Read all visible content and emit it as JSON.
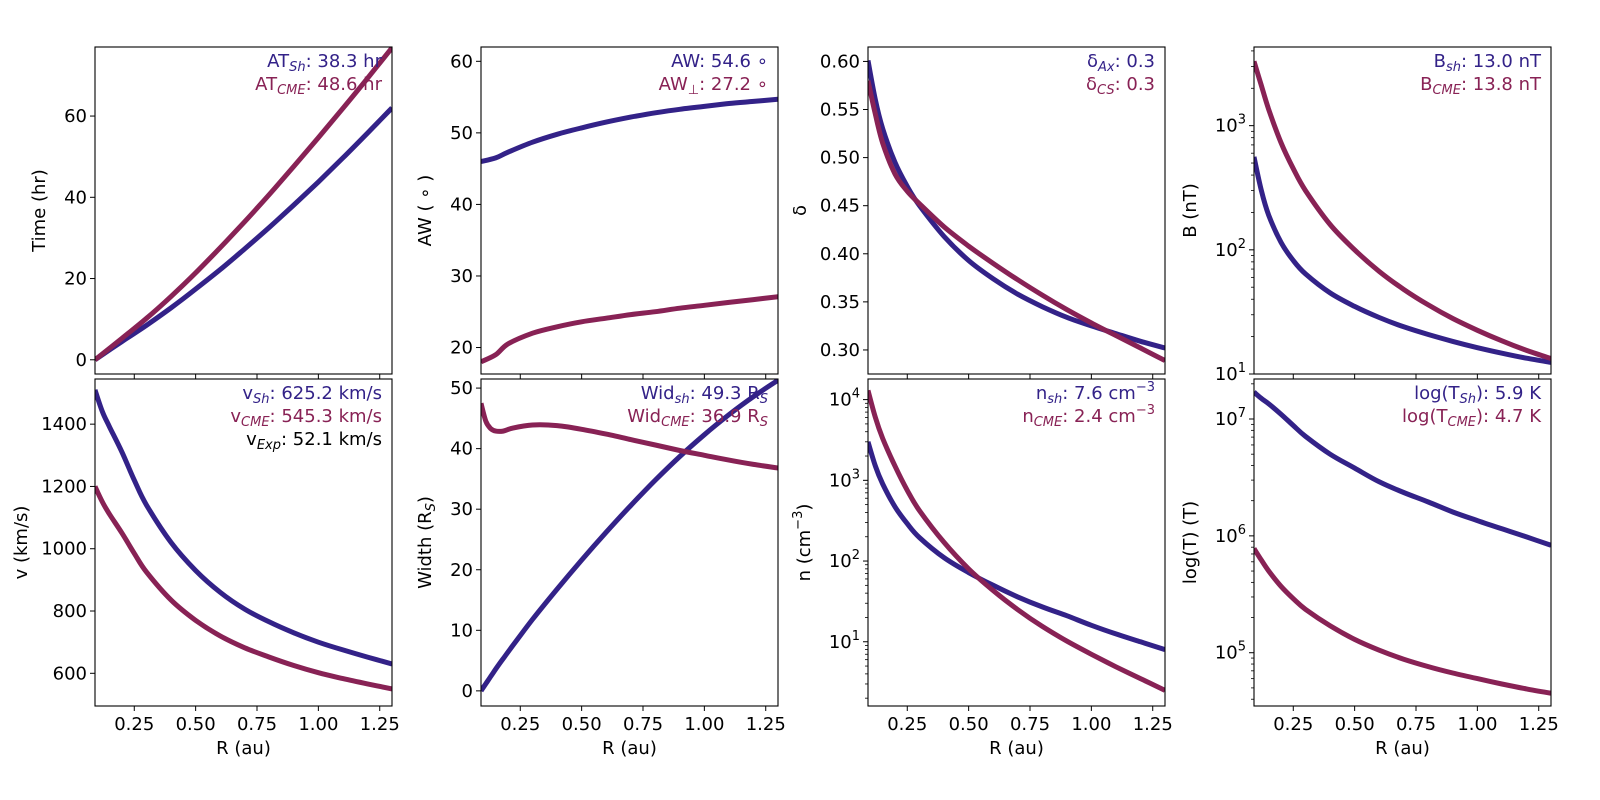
{
  "colors": {
    "shock": "#332288",
    "cme": "#882255",
    "text": "#000000",
    "axis": "#000000"
  },
  "chart_data": [
    {
      "id": "time",
      "type": "line",
      "xlabel": "R (au)",
      "ylabel": "Time (hr)",
      "yscale": "linear",
      "xlim": [
        0.09,
        1.3
      ],
      "ylim": [
        -3.5,
        77
      ],
      "xticks": [
        0.25,
        0.5,
        0.75,
        1.0,
        1.25
      ],
      "xtick_labels": [
        "0.25",
        "0.50",
        "0.75",
        "1.00",
        "1.25"
      ],
      "show_xtick_labels": false,
      "yticks": [
        0,
        20,
        40,
        60
      ],
      "ytick_labels": [
        "0",
        "20",
        "40",
        "60"
      ],
      "x": [
        0.09,
        0.2,
        0.3,
        0.4,
        0.5,
        0.6,
        0.7,
        0.8,
        0.9,
        1.0,
        1.1,
        1.2,
        1.3
      ],
      "series": [
        {
          "name": "shock",
          "values": [
            0,
            4.5,
            8.5,
            12.8,
            17.4,
            22.2,
            27.3,
            32.6,
            38.1,
            43.8,
            49.7,
            55.8,
            62.0
          ]
        },
        {
          "name": "cme",
          "values": [
            0,
            5.3,
            10.2,
            15.6,
            21.4,
            27.6,
            34.0,
            40.7,
            47.6,
            54.7,
            61.9,
            69.3,
            76.8
          ]
        }
      ],
      "annotations": [
        {
          "series": "shock",
          "main": "AT",
          "sub": "Sh",
          "rest": ": 38.3 hr"
        },
        {
          "series": "cme",
          "main": "AT",
          "sub": "CME",
          "rest": ": 48.6 hr"
        }
      ]
    },
    {
      "id": "aw",
      "type": "line",
      "xlabel": "R (au)",
      "ylabel": "AW ( ∘ )",
      "yscale": "linear",
      "xlim": [
        0.09,
        1.3
      ],
      "ylim": [
        16.3,
        62
      ],
      "xticks": [
        0.25,
        0.5,
        0.75,
        1.0,
        1.25
      ],
      "xtick_labels": [
        "0.25",
        "0.50",
        "0.75",
        "1.00",
        "1.25"
      ],
      "show_xtick_labels": false,
      "yticks": [
        20,
        30,
        40,
        50,
        60
      ],
      "ytick_labels": [
        "20",
        "30",
        "40",
        "50",
        "60"
      ],
      "x": [
        0.09,
        0.15,
        0.2,
        0.3,
        0.4,
        0.5,
        0.6,
        0.7,
        0.8,
        0.9,
        1.0,
        1.1,
        1.2,
        1.3
      ],
      "series": [
        {
          "name": "shock",
          "values": [
            46.0,
            46.5,
            47.3,
            48.7,
            49.8,
            50.7,
            51.5,
            52.2,
            52.8,
            53.3,
            53.7,
            54.1,
            54.4,
            54.7
          ]
        },
        {
          "name": "cme",
          "values": [
            18.0,
            19.0,
            20.5,
            22.0,
            22.9,
            23.6,
            24.1,
            24.6,
            25.0,
            25.5,
            25.9,
            26.3,
            26.7,
            27.1
          ]
        }
      ],
      "annotations": [
        {
          "series": "shock",
          "main": "AW",
          "sub": "",
          "rest": ": 54.6 ∘"
        },
        {
          "series": "cme",
          "main": "AW",
          "sub": "⊥",
          "rest": ": 27.2 ∘"
        }
      ]
    },
    {
      "id": "delta",
      "type": "line",
      "xlabel": "R (au)",
      "ylabel": "δ",
      "yscale": "linear",
      "xlim": [
        0.09,
        1.3
      ],
      "ylim": [
        0.275,
        0.615
      ],
      "xticks": [
        0.25,
        0.5,
        0.75,
        1.0,
        1.25
      ],
      "xtick_labels": [
        "0.25",
        "0.50",
        "0.75",
        "1.00",
        "1.25"
      ],
      "show_xtick_labels": false,
      "yticks": [
        0.3,
        0.35,
        0.4,
        0.45,
        0.5,
        0.55,
        0.6
      ],
      "ytick_labels": [
        "0.30",
        "0.35",
        "0.40",
        "0.45",
        "0.50",
        "0.55",
        "0.60"
      ],
      "x": [
        0.09,
        0.12,
        0.15,
        0.2,
        0.25,
        0.3,
        0.4,
        0.5,
        0.6,
        0.7,
        0.8,
        0.9,
        1.0,
        1.1,
        1.2,
        1.3
      ],
      "series": [
        {
          "name": "shock",
          "values": [
            0.601,
            0.56,
            0.53,
            0.495,
            0.47,
            0.45,
            0.418,
            0.393,
            0.374,
            0.358,
            0.345,
            0.334,
            0.325,
            0.317,
            0.309,
            0.302
          ]
        },
        {
          "name": "cme",
          "values": [
            0.58,
            0.545,
            0.515,
            0.483,
            0.465,
            0.452,
            0.428,
            0.408,
            0.39,
            0.373,
            0.357,
            0.342,
            0.328,
            0.315,
            0.302,
            0.289
          ]
        }
      ],
      "annotations": [
        {
          "series": "shock",
          "main": "δ",
          "sub": "Ax",
          "rest": ":  0.3"
        },
        {
          "series": "cme",
          "main": "δ",
          "sub": "CS",
          "rest": ":  0.3"
        }
      ]
    },
    {
      "id": "bfield",
      "type": "line",
      "xlabel": "R (au)",
      "ylabel": "B (nT)",
      "yscale": "log",
      "xlim": [
        0.09,
        1.3
      ],
      "ylim": [
        10,
        4300
      ],
      "xticks": [
        0.25,
        0.5,
        0.75,
        1.0,
        1.25
      ],
      "xtick_labels": [
        "0.25",
        "0.50",
        "0.75",
        "1.00",
        "1.25"
      ],
      "show_xtick_labels": false,
      "yticks": [
        10,
        100,
        1000
      ],
      "ytick_labels": [
        [
          "10",
          "1"
        ],
        [
          "10",
          "2"
        ],
        [
          "10",
          "3"
        ]
      ],
      "x": [
        0.09,
        0.12,
        0.15,
        0.2,
        0.25,
        0.3,
        0.4,
        0.5,
        0.6,
        0.7,
        0.8,
        0.9,
        1.0,
        1.1,
        1.2,
        1.3
      ],
      "series": [
        {
          "name": "shock",
          "values": [
            560,
            300,
            190,
            115,
            82,
            64,
            45,
            35,
            28.5,
            24,
            20.8,
            18.3,
            16.3,
            14.7,
            13.4,
            12.4
          ]
        },
        {
          "name": "cme",
          "values": [
            3300,
            2100,
            1350,
            730,
            450,
            300,
            160,
            100,
            67,
            48,
            36,
            28,
            22.5,
            18.5,
            15.5,
            13.3
          ]
        }
      ],
      "annotations": [
        {
          "series": "shock",
          "main": "B",
          "sub": "sh",
          "rest": ": 13.0 nT"
        },
        {
          "series": "cme",
          "main": "B",
          "sub": "CME",
          "rest": ": 13.8 nT"
        }
      ]
    },
    {
      "id": "velocity",
      "type": "line",
      "xlabel": "R (au)",
      "ylabel": "v (km/s)",
      "yscale": "linear",
      "xlim": [
        0.09,
        1.3
      ],
      "ylim": [
        495,
        1545
      ],
      "xticks": [
        0.25,
        0.5,
        0.75,
        1.0,
        1.25
      ],
      "xtick_labels": [
        "0.25",
        "0.50",
        "0.75",
        "1.00",
        "1.25"
      ],
      "show_xtick_labels": true,
      "yticks": [
        600,
        800,
        1000,
        1200,
        1400
      ],
      "ytick_labels": [
        "600",
        "800",
        "1000",
        "1200",
        "1400"
      ],
      "x": [
        0.09,
        0.12,
        0.15,
        0.2,
        0.25,
        0.3,
        0.4,
        0.5,
        0.6,
        0.7,
        0.8,
        0.9,
        1.0,
        1.1,
        1.2,
        1.3
      ],
      "series": [
        {
          "name": "shock",
          "values": [
            1510,
            1440,
            1390,
            1310,
            1220,
            1140,
            1020,
            930,
            860,
            806,
            765,
            730,
            700,
            675,
            652,
            630
          ]
        },
        {
          "name": "cme",
          "values": [
            1200,
            1150,
            1110,
            1050,
            985,
            925,
            835,
            770,
            720,
            682,
            652,
            625,
            602,
            583,
            566,
            550
          ]
        }
      ],
      "annotations": [
        {
          "series": "shock",
          "main": "v",
          "sub": "Sh",
          "rest": ": 625.2 km/s"
        },
        {
          "series": "cme",
          "main": "v",
          "sub": "CME",
          "rest": ": 545.3 km/s"
        },
        {
          "series": "text",
          "main": "v",
          "sub": "Exp",
          "rest": ": 52.1 km/s"
        }
      ]
    },
    {
      "id": "width",
      "type": "line",
      "xlabel": "R (au)",
      "ylabel": "Width (R",
      "ylabel_sub": "S",
      "ylabel_end": ")",
      "yscale": "linear",
      "xlim": [
        0.09,
        1.3
      ],
      "ylim": [
        -2.5,
        51.5
      ],
      "xticks": [
        0.25,
        0.5,
        0.75,
        1.0,
        1.25
      ],
      "xtick_labels": [
        "0.25",
        "0.50",
        "0.75",
        "1.00",
        "1.25"
      ],
      "show_xtick_labels": true,
      "yticks": [
        0,
        10,
        20,
        30,
        40,
        50
      ],
      "ytick_labels": [
        "0",
        "10",
        "20",
        "30",
        "40",
        "50"
      ],
      "x": [
        0.09,
        0.11,
        0.13,
        0.15,
        0.18,
        0.22,
        0.3,
        0.4,
        0.5,
        0.6,
        0.7,
        0.8,
        0.9,
        1.0,
        1.1,
        1.2,
        1.3
      ],
      "series": [
        {
          "name": "shock",
          "values": [
            0,
            1.2,
            2.4,
            3.6,
            5.3,
            7.5,
            11.8,
            16.8,
            21.6,
            26.2,
            30.6,
            34.8,
            38.7,
            42.3,
            45.6,
            48.6,
            51.3
          ]
        },
        {
          "name": "cme",
          "values": [
            47.5,
            44.5,
            43.3,
            42.9,
            42.9,
            43.4,
            43.9,
            43.8,
            43.2,
            42.4,
            41.5,
            40.6,
            39.7,
            38.9,
            38.1,
            37.4,
            36.8
          ]
        }
      ],
      "annotations": [
        {
          "series": "shock",
          "main": "Wid",
          "sub": "sh",
          "rest": ": 49.3 R",
          "rest_sub": "S"
        },
        {
          "series": "cme",
          "main": "Wid",
          "sub": "CME",
          "rest": ": 36.9 R",
          "rest_sub": "S"
        }
      ]
    },
    {
      "id": "density",
      "type": "line",
      "xlabel": "R (au)",
      "ylabel": "n (cm",
      "ylabel_sup": "−3",
      "ylabel_end": ")",
      "yscale": "log",
      "xlim": [
        0.09,
        1.3
      ],
      "ylim": [
        1.6,
        18000
      ],
      "xticks": [
        0.25,
        0.5,
        0.75,
        1.0,
        1.25
      ],
      "xtick_labels": [
        "0.25",
        "0.50",
        "0.75",
        "1.00",
        "1.25"
      ],
      "show_xtick_labels": true,
      "yticks": [
        10,
        100,
        1000,
        10000
      ],
      "ytick_labels": [
        [
          "10",
          "1"
        ],
        [
          "10",
          "2"
        ],
        [
          "10",
          "3"
        ],
        [
          "10",
          "4"
        ]
      ],
      "x": [
        0.09,
        0.12,
        0.15,
        0.2,
        0.25,
        0.3,
        0.4,
        0.5,
        0.6,
        0.7,
        0.8,
        0.9,
        1.0,
        1.1,
        1.2,
        1.3
      ],
      "series": [
        {
          "name": "shock",
          "values": [
            3000,
            1500,
            900,
            470,
            290,
            195,
            110,
            72,
            50,
            36,
            27,
            21,
            16,
            12.5,
            10,
            8.0
          ]
        },
        {
          "name": "cme",
          "values": [
            13000,
            6000,
            3300,
            1500,
            750,
            420,
            170,
            80,
            43,
            25,
            15.5,
            10.2,
            7.0,
            4.9,
            3.5,
            2.5
          ]
        }
      ],
      "annotations": [
        {
          "series": "shock",
          "main": "n",
          "sub": "sh",
          "rest": ":  7.6 cm",
          "rest_sup": "−3"
        },
        {
          "series": "cme",
          "main": "n",
          "sub": "CME",
          "rest": ":  2.4 cm",
          "rest_sup": "−3"
        }
      ]
    },
    {
      "id": "temperature",
      "type": "line",
      "xlabel": "R (au)",
      "ylabel": "log(T) (T)",
      "yscale": "log",
      "xlim": [
        0.09,
        1.3
      ],
      "ylim": [
        35000,
        22000000
      ],
      "xticks": [
        0.25,
        0.5,
        0.75,
        1.0,
        1.25
      ],
      "xtick_labels": [
        "0.25",
        "0.50",
        "0.75",
        "1.00",
        "1.25"
      ],
      "show_xtick_labels": true,
      "yticks": [
        100000,
        1000000,
        10000000
      ],
      "ytick_labels": [
        [
          "10",
          "5"
        ],
        [
          "10",
          "6"
        ],
        [
          "10",
          "7"
        ]
      ],
      "x": [
        0.09,
        0.12,
        0.15,
        0.2,
        0.25,
        0.3,
        0.4,
        0.5,
        0.6,
        0.7,
        0.8,
        0.9,
        1.0,
        1.1,
        1.2,
        1.3
      ],
      "series": [
        {
          "name": "shock",
          "values": [
            17000000,
            15000000,
            13500000,
            11000000,
            8800000,
            7100000,
            5000000,
            3800000,
            2900000,
            2350000,
            1950000,
            1600000,
            1350000,
            1150000,
            980000,
            830000
          ]
        },
        {
          "name": "cme",
          "values": [
            780000,
            620000,
            500000,
            370000,
            290000,
            235000,
            170000,
            130000,
            105000,
            88000,
            76000,
            67000,
            60000,
            54000,
            49000,
            45000
          ]
        }
      ],
      "annotations": [
        {
          "series": "shock",
          "main": "log(T",
          "sub": "Sh",
          "rest": "):  5.9 K"
        },
        {
          "series": "cme",
          "main": "log(T",
          "sub": "CME",
          "rest": "):  4.7 K"
        }
      ]
    }
  ]
}
